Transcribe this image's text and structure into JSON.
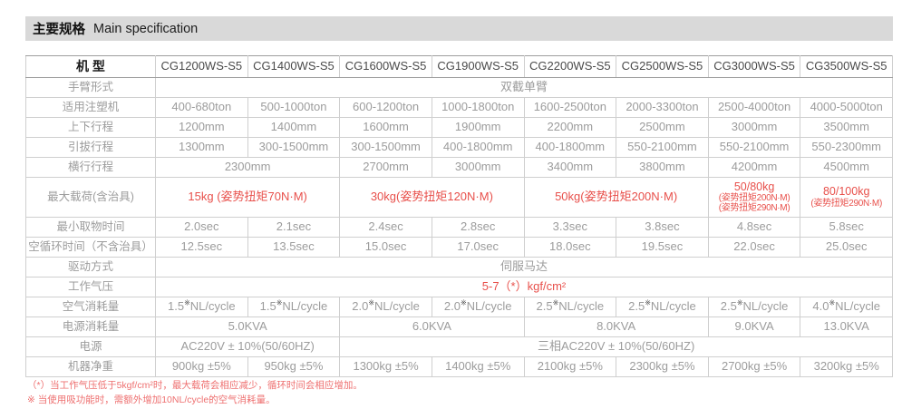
{
  "colors": {
    "accent_red": "#e8504b",
    "header_bg": "#d9d9d9",
    "border_gray": "#cfcfcf"
  },
  "header": {
    "title_zh": "主要规格",
    "title_en": "Main specification"
  },
  "table": {
    "model_label": "机 型",
    "models": [
      "CG1200WS-S5",
      "CG1400WS-S5",
      "CG1600WS-S5",
      "CG1900WS-S5",
      "CG2200WS-S5",
      "CG2500WS-S5",
      "CG3000WS-S5",
      "CG3500WS-S5"
    ],
    "rows": [
      {
        "label": "手臂形式",
        "cells": [
          {
            "t": "双截单臂",
            "span": 8
          }
        ]
      },
      {
        "label": "适用注塑机",
        "cells": [
          {
            "t": "400-680ton"
          },
          {
            "t": "500-1000ton"
          },
          {
            "t": "600-1200ton"
          },
          {
            "t": "1000-1800ton"
          },
          {
            "t": "1600-2500ton"
          },
          {
            "t": "2000-3300ton"
          },
          {
            "t": "2500-4000ton"
          },
          {
            "t": "4000-5000ton"
          }
        ]
      },
      {
        "label": "上下行程",
        "cells": [
          {
            "t": "1200mm"
          },
          {
            "t": "1400mm"
          },
          {
            "t": "1600mm"
          },
          {
            "t": "1900mm"
          },
          {
            "t": "2200mm"
          },
          {
            "t": "2500mm"
          },
          {
            "t": "3000mm"
          },
          {
            "t": "3500mm"
          }
        ]
      },
      {
        "label": "引拔行程",
        "cells": [
          {
            "t": "1300mm"
          },
          {
            "t": "300-1500mm"
          },
          {
            "t": "300-1500mm"
          },
          {
            "t": "400-1800mm"
          },
          {
            "t": "400-1800mm"
          },
          {
            "t": "550-2100mm"
          },
          {
            "t": "550-2100mm"
          },
          {
            "t": "550-2300mm"
          }
        ]
      },
      {
        "label": "横行行程",
        "cells": [
          {
            "t": "2300mm",
            "span": 2
          },
          {
            "t": "2700mm"
          },
          {
            "t": "3000mm"
          },
          {
            "t": "3400mm"
          },
          {
            "t": "3800mm"
          },
          {
            "t": "4200mm"
          },
          {
            "t": "4500mm"
          }
        ]
      },
      {
        "label": "最大载荷(含治具)",
        "red": true,
        "cls": "load-row",
        "cells": [
          {
            "t": "15kg (姿势扭矩70N·M)",
            "span": 2
          },
          {
            "t": "30kg(姿势扭矩120N·M)",
            "span": 2
          },
          {
            "t": "50kg(姿势扭矩200N·M)",
            "span": 2
          },
          {
            "lines": [
              "50/80kg",
              "(姿势扭矩200N·M)",
              "(姿势扭矩290N·M)"
            ]
          },
          {
            "lines": [
              "80/100kg",
              "(姿势扭矩290N·M)"
            ]
          }
        ]
      },
      {
        "label": "最小取物时间",
        "cells": [
          {
            "t": "2.0sec"
          },
          {
            "t": "2.1sec"
          },
          {
            "t": "2.4sec"
          },
          {
            "t": "2.8sec"
          },
          {
            "t": "3.3sec"
          },
          {
            "t": "3.8sec"
          },
          {
            "t": "4.8sec"
          },
          {
            "t": "5.8sec"
          }
        ]
      },
      {
        "label": "空循环时间（不含治具）",
        "cells": [
          {
            "t": "12.5sec"
          },
          {
            "t": "13.5sec"
          },
          {
            "t": "15.0sec"
          },
          {
            "t": "17.0sec"
          },
          {
            "t": "18.0sec"
          },
          {
            "t": "19.5sec"
          },
          {
            "t": "22.0sec"
          },
          {
            "t": "25.0sec"
          }
        ]
      },
      {
        "label": "驱动方式",
        "cells": [
          {
            "t": "伺服马达",
            "span": 8
          }
        ]
      },
      {
        "label": "工作气压",
        "red": true,
        "cells": [
          {
            "t": "5-7（*）kgf/cm²",
            "span": 8
          }
        ]
      },
      {
        "label": "空气消耗量",
        "cells": [
          {
            "t": "1.5※NL/cycle"
          },
          {
            "t": "1.5※NL/cycle"
          },
          {
            "t": "2.0※NL/cycle"
          },
          {
            "t": "2.0※NL/cycle"
          },
          {
            "t": "2.5※NL/cycle"
          },
          {
            "t": "2.5※NL/cycle"
          },
          {
            "t": "2.5※NL/cycle"
          },
          {
            "t": "4.0※NL/cycle"
          }
        ]
      },
      {
        "label": "电源消耗量",
        "cells": [
          {
            "t": "5.0KVA",
            "span": 2
          },
          {
            "t": "6.0KVA",
            "span": 2
          },
          {
            "t": "8.0KVA",
            "span": 2
          },
          {
            "t": "9.0KVA"
          },
          {
            "t": "13.0KVA"
          }
        ]
      },
      {
        "label": "电源",
        "cells": [
          {
            "t": "AC220V ± 10%(50/60HZ)",
            "span": 2
          },
          {
            "t": "三相AC220V ± 10%(50/60HZ)",
            "span": 6
          }
        ]
      },
      {
        "label": "机器净重",
        "cells": [
          {
            "t": "900kg ±5%"
          },
          {
            "t": "950kg ±5%"
          },
          {
            "t": "1300kg ±5%"
          },
          {
            "t": "1400kg ±5%"
          },
          {
            "t": "2100kg ±5%"
          },
          {
            "t": "2300kg ±5%"
          },
          {
            "t": "2700kg ±5%"
          },
          {
            "t": "3200kg ±5%"
          }
        ]
      }
    ]
  },
  "footnotes": [
    "（*）当工作气压低于5kgf/cm²时，最大载荷会相应减少，循环时间会相应增加。",
    "※ 当使用吸功能时，需额外增加10NL/cycle的空气消耗量。"
  ]
}
